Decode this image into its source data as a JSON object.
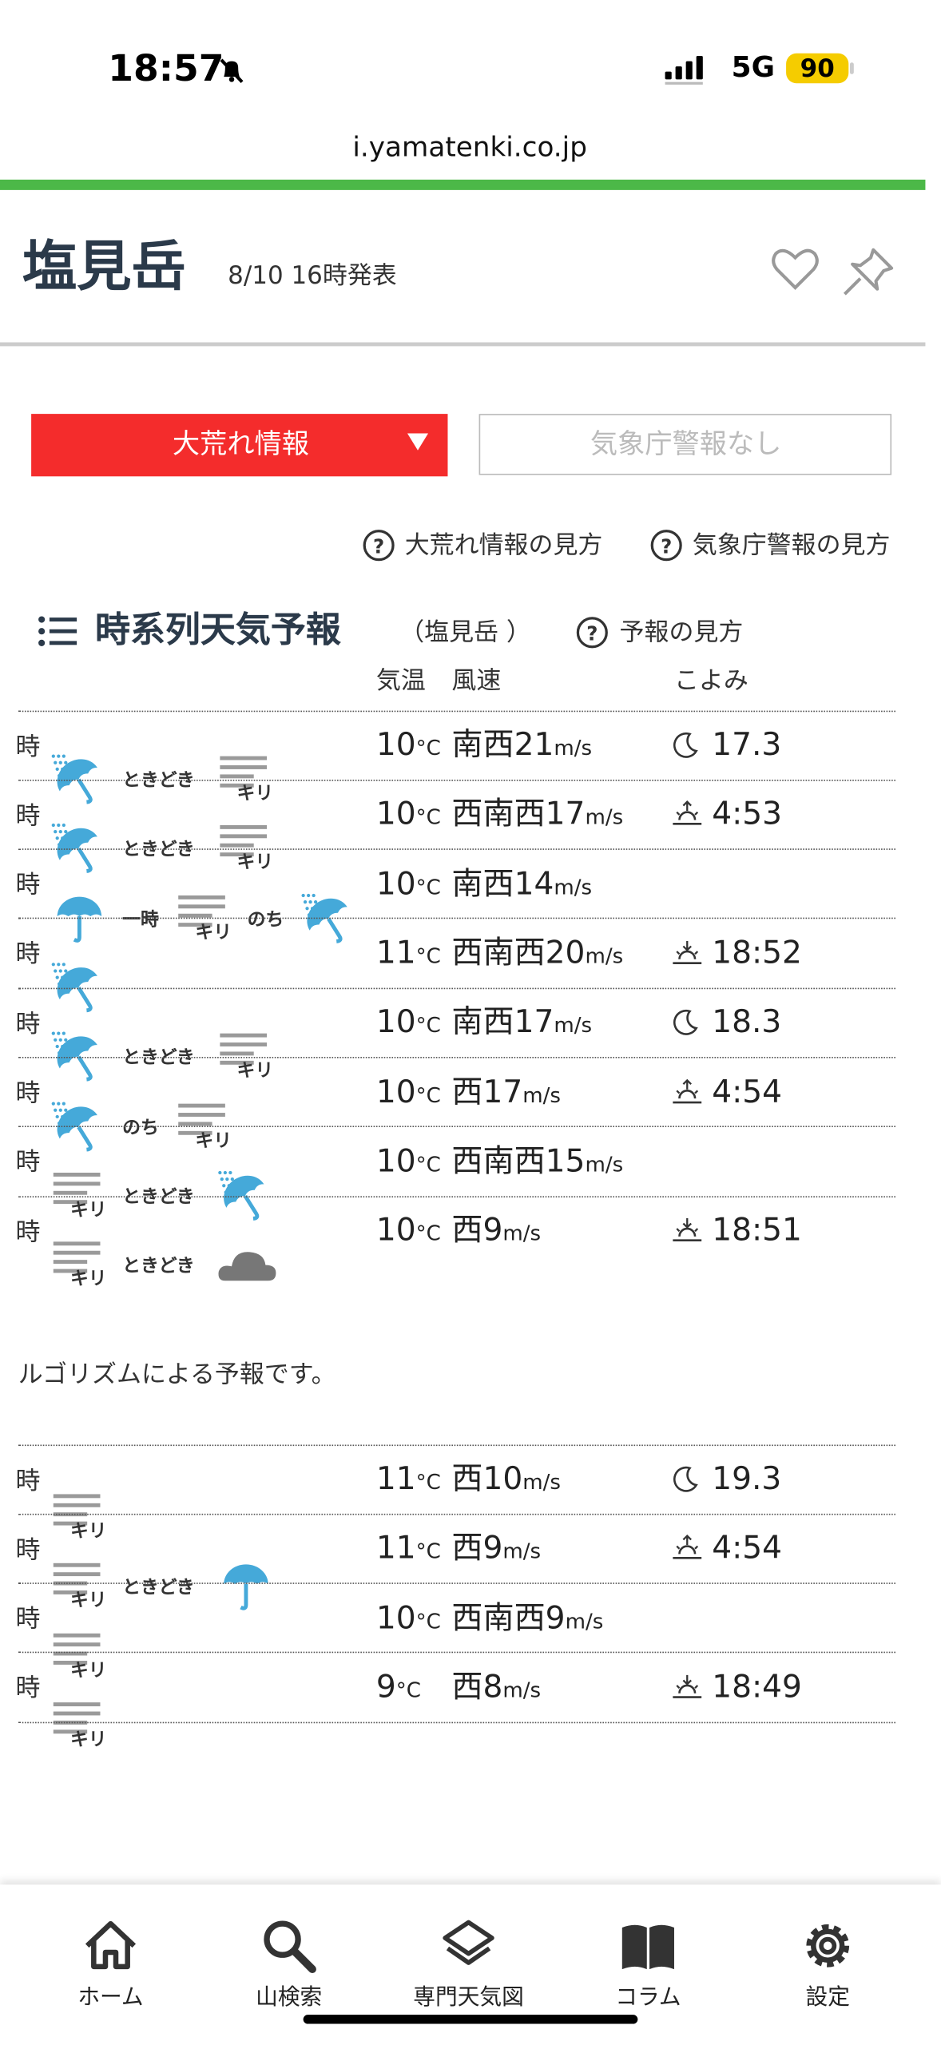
{
  "status_bar": {
    "time": "18:57",
    "network": "5G",
    "battery": 90
  },
  "url": "i.yamatenki.co.jp",
  "header": {
    "title": "塩見岳",
    "issued": "8/10 16時発表"
  },
  "alerts": {
    "storm_button": "大荒れ情報",
    "jma": "気象庁警報なし"
  },
  "help_icon": "?",
  "help_links": [
    "大荒れ情報の見方",
    "気象庁警報の見方"
  ],
  "section": {
    "title": "時系列天気予報",
    "location": "（塩見岳 ）",
    "help": "予報の見方"
  },
  "columns": {
    "temp": "気温",
    "wind": "風速",
    "koyomi": "こよみ"
  },
  "units": {
    "temp": "°C",
    "wind": "m/s"
  },
  "tables": [
    {
      "rows": [
        {
          "time": "時",
          "temp": 10,
          "wind_dir": "南西",
          "wind_speed": 21,
          "koyomi_type": "moon",
          "koyomi": 17.3,
          "weather": [
            {
              "icon": "rain"
            },
            {
              "text": "ときどき"
            },
            {
              "icon": "fog",
              "label": "キリ"
            }
          ]
        },
        {
          "time": "時",
          "temp": 10,
          "wind_dir": "西南西",
          "wind_speed": 17,
          "koyomi_type": "sunrise",
          "koyomi": "4:53",
          "weather": [
            {
              "icon": "rain"
            },
            {
              "text": "ときどき"
            },
            {
              "icon": "fog",
              "label": "キリ"
            }
          ]
        },
        {
          "time": "時",
          "temp": 10,
          "wind_dir": "南西",
          "wind_speed": 14,
          "weather": [
            {
              "icon": "umbrella"
            },
            {
              "text": "一時"
            },
            {
              "icon": "fog",
              "label": "キリ"
            },
            {
              "text": "のち"
            },
            {
              "icon": "rain"
            }
          ]
        },
        {
          "time": "時",
          "temp": 11,
          "wind_dir": "西南西",
          "wind_speed": 20,
          "koyomi_type": "sunset",
          "koyomi": "18:52",
          "weather": [
            {
              "icon": "rain"
            }
          ]
        },
        {
          "time": "時",
          "temp": 10,
          "wind_dir": "南西",
          "wind_speed": 17,
          "koyomi_type": "moon",
          "koyomi": 18.3,
          "weather": [
            {
              "icon": "rain"
            },
            {
              "text": "ときどき"
            },
            {
              "icon": "fog",
              "label": "キリ"
            }
          ]
        },
        {
          "time": "時",
          "temp": 10,
          "wind_dir": "西",
          "wind_speed": 17,
          "koyomi_type": "sunrise",
          "koyomi": "4:54",
          "weather": [
            {
              "icon": "rain"
            },
            {
              "text": "のち"
            },
            {
              "icon": "fog",
              "label": "キリ"
            }
          ]
        },
        {
          "time": "時",
          "temp": 10,
          "wind_dir": "西南西",
          "wind_speed": 15,
          "weather": [
            {
              "icon": "fog",
              "label": "キリ"
            },
            {
              "text": "ときどき"
            },
            {
              "icon": "rain"
            }
          ]
        },
        {
          "time": "時",
          "temp": 10,
          "wind_dir": "西",
          "wind_speed": 9,
          "koyomi_type": "sunset",
          "koyomi": "18:51",
          "weather": [
            {
              "icon": "fog",
              "label": "キリ"
            },
            {
              "text": "ときどき"
            },
            {
              "icon": "cloud"
            }
          ]
        }
      ]
    },
    {
      "rows": [
        {
          "time": "時",
          "temp": 11,
          "wind_dir": "西",
          "wind_speed": 10,
          "koyomi_type": "moon",
          "koyomi": 19.3,
          "weather": [
            {
              "icon": "fog",
              "label": "キリ"
            }
          ]
        },
        {
          "time": "時",
          "temp": 11,
          "wind_dir": "西",
          "wind_speed": 9,
          "koyomi_type": "sunrise",
          "koyomi": "4:54",
          "weather": [
            {
              "icon": "fog",
              "label": "キリ"
            },
            {
              "text": "ときどき"
            },
            {
              "icon": "umbrella"
            }
          ]
        },
        {
          "time": "時",
          "temp": 10,
          "wind_dir": "西南西",
          "wind_speed": 9,
          "weather": [
            {
              "icon": "fog",
              "label": "キリ"
            }
          ]
        },
        {
          "time": "時",
          "temp": 9,
          "wind_dir": "西",
          "wind_speed": 8,
          "koyomi_type": "sunset",
          "koyomi": "18:49",
          "weather": [
            {
              "icon": "fog",
              "label": "キリ"
            }
          ]
        }
      ]
    }
  ],
  "note": "ルゴリズムによる予報です。",
  "nav": [
    "ホーム",
    "山検索",
    "専門天気図",
    "コラム",
    "設定"
  ]
}
